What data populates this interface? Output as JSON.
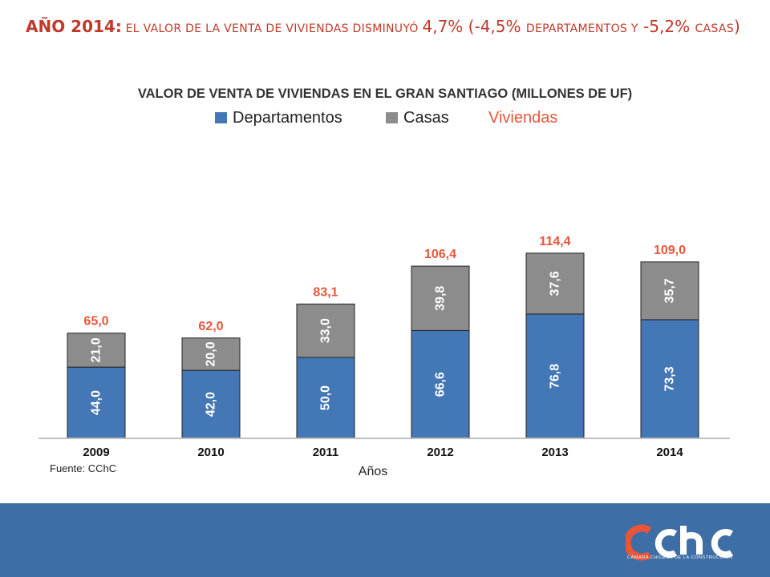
{
  "headline": {
    "lead": "AÑO 2014:",
    "part1": " EL VALOR DE LA VENTA DE VIVIENDAS DISMINUYÓ ",
    "pct_total": "4,7%",
    "part2": " (-4,5% ",
    "part3": "DEPARTAMENTOS Y",
    "part4": " -5,2% ",
    "part5": "CASAS",
    "part6": ")"
  },
  "chart_data": {
    "type": "bar",
    "stacked": true,
    "title": "VALOR DE VENTA DE VIVIENDAS EN EL GRAN SANTIAGO (MILLONES DE UF)",
    "categories": [
      "2009",
      "2010",
      "2011",
      "2012",
      "2013",
      "2014"
    ],
    "series": [
      {
        "name": "Departamentos",
        "color": "#4477b5",
        "values": [
          44.0,
          42.0,
          50.0,
          66.6,
          76.8,
          73.3
        ],
        "labels": [
          "44,0",
          "42,0",
          "50,0",
          "66,6",
          "76,8",
          "73,3"
        ]
      },
      {
        "name": "Casas",
        "color": "#8c8c8c",
        "values": [
          21.0,
          20.0,
          33.0,
          39.8,
          37.6,
          35.7
        ],
        "labels": [
          "21,0",
          "20,0",
          "33,0",
          "39,8",
          "37,6",
          "35,7"
        ]
      }
    ],
    "totals": {
      "name": "Viviendas",
      "color": "#e8553a",
      "values": [
        65.0,
        62.0,
        83.1,
        106.4,
        114.4,
        109.0
      ],
      "labels": [
        "65,0",
        "62,0",
        "83,1",
        "106,4",
        "114,4",
        "109,0"
      ]
    },
    "xlabel": "Años",
    "ylabel": "",
    "ylim": [
      0,
      130
    ],
    "source": "Fuente: CChC",
    "legend_position": "top-center"
  },
  "brand": {
    "logo_text": "CÁMARA CHILENA DE LA CONSTRUCCIÓN",
    "footer_color": "#3d6ea6",
    "logo_red": "#e8553a"
  }
}
